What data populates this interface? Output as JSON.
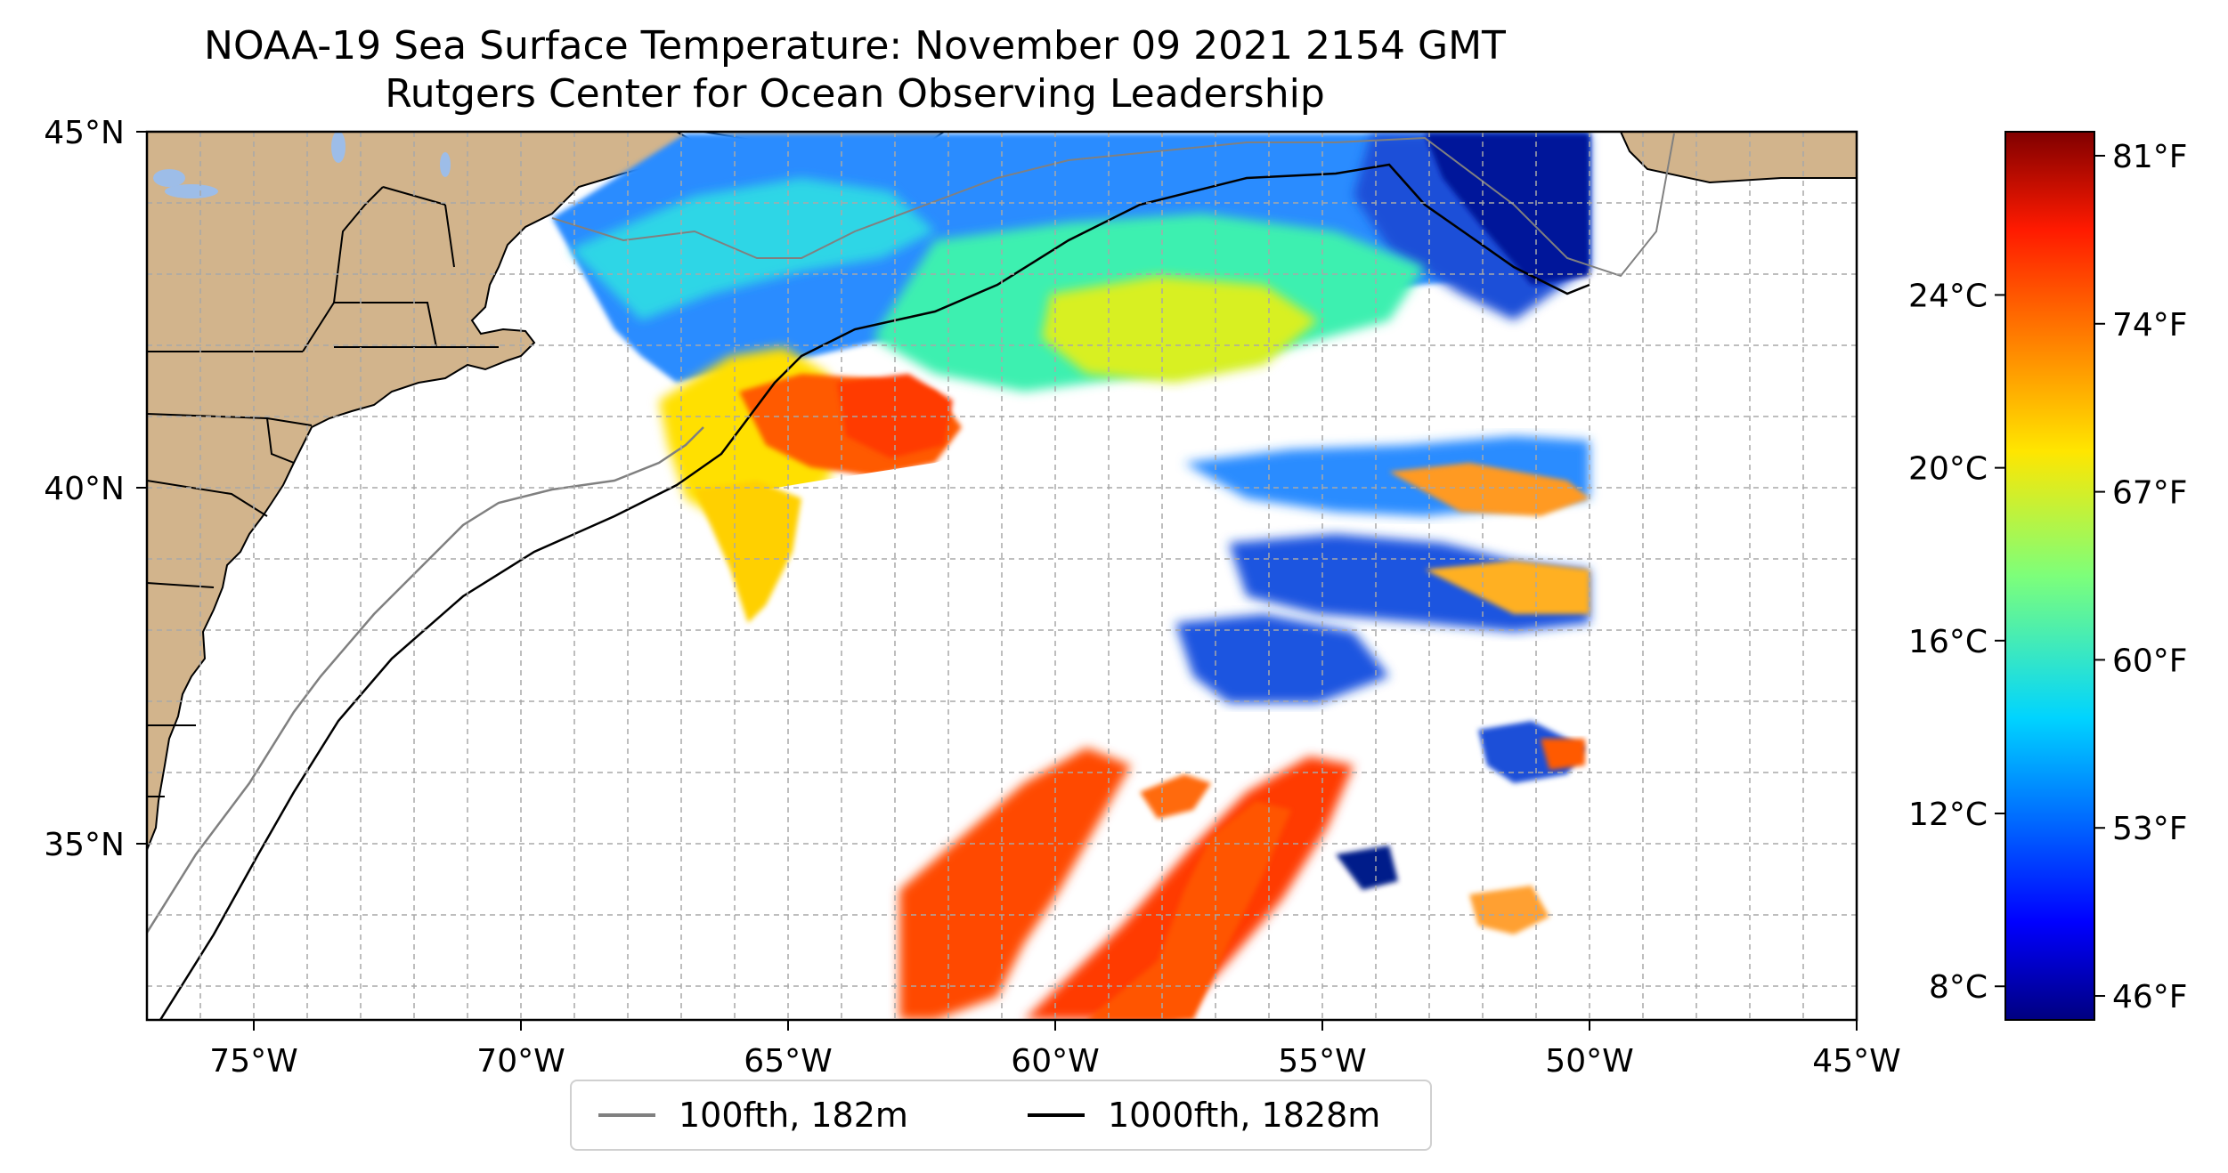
{
  "title": {
    "line1": "NOAA-19 Sea Surface Temperature: November 09 2021 2154 GMT",
    "line2": "Rutgers Center for Ocean Observing Leadership"
  },
  "map": {
    "lon_range": [
      -77,
      -45
    ],
    "lat_range": [
      32.5,
      45
    ],
    "lon_ticks": [
      {
        "value": -75,
        "label": "75°W"
      },
      {
        "value": -70,
        "label": "70°W"
      },
      {
        "value": -65,
        "label": "65°W"
      },
      {
        "value": -60,
        "label": "60°W"
      },
      {
        "value": -55,
        "label": "55°W"
      },
      {
        "value": -50,
        "label": "50°W"
      },
      {
        "value": -45,
        "label": "45°W"
      }
    ],
    "lat_ticks": [
      {
        "value": 45,
        "label": "45°N"
      },
      {
        "value": 40,
        "label": "40°N"
      },
      {
        "value": 35,
        "label": "35°N"
      }
    ],
    "grid": true,
    "land_color": "#d2b48c",
    "lake_color": "#9dbde8",
    "isobath_100_color": "#808080",
    "isobath_1000_color": "#000000"
  },
  "colorbar": {
    "colormap": "jet",
    "celsius_ticks": [
      {
        "value": 24,
        "label": "24°C"
      },
      {
        "value": 20,
        "label": "20°C"
      },
      {
        "value": 16,
        "label": "16°C"
      },
      {
        "value": 12,
        "label": "12°C"
      },
      {
        "value": 8,
        "label": "8°C"
      }
    ],
    "fahrenheit_ticks": [
      {
        "value": 81,
        "label": "81°F"
      },
      {
        "value": 74,
        "label": "74°F"
      },
      {
        "value": 67,
        "label": "67°F"
      },
      {
        "value": 60,
        "label": "60°F"
      },
      {
        "value": 53,
        "label": "53°F"
      },
      {
        "value": 46,
        "label": "46°F"
      }
    ],
    "range_f": [
      45,
      82
    ]
  },
  "legend": {
    "items": [
      {
        "label": "100fth, 182m",
        "color": "#808080"
      },
      {
        "label": "1000fth, 1828m",
        "color": "#000000"
      }
    ]
  }
}
